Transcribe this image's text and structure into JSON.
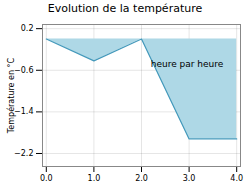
{
  "chart_data": {
    "type": "line",
    "title": "Evolution de la température",
    "ylabel": "Température en °C",
    "annotations": [
      "heure par heure"
    ],
    "x": [
      0,
      1,
      2,
      3,
      4
    ],
    "series": [
      {
        "type": "area",
        "color": "#aed8e6",
        "values": [
          0.0,
          -0.42,
          0.0,
          -1.92,
          -1.92
        ]
      },
      {
        "type": "line",
        "color": "#4499bb",
        "values": [
          0.0,
          -0.42,
          0.0,
          -1.92,
          -1.92
        ]
      }
    ],
    "xlim": [
      -0.08,
      4.08
    ],
    "ylim": [
      -2.45,
      0.28
    ],
    "xticks": [
      0,
      1,
      2,
      3,
      4
    ],
    "yticks": [
      0.2,
      -0.6,
      -1.4,
      -2.2
    ],
    "grid": true
  }
}
